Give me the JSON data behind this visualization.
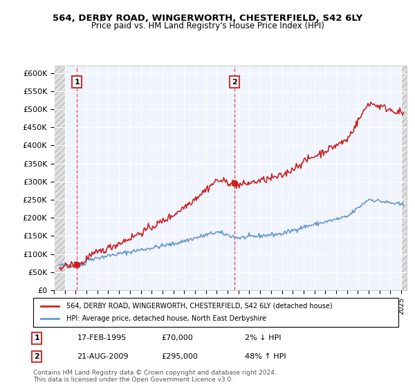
{
  "title": "564, DERBY ROAD, WINGERWORTH, CHESTERFIELD, S42 6LY",
  "subtitle": "Price paid vs. HM Land Registry's House Price Index (HPI)",
  "ytick_values": [
    0,
    50000,
    100000,
    150000,
    200000,
    250000,
    300000,
    350000,
    400000,
    450000,
    500000,
    550000,
    600000
  ],
  "ylim": [
    0,
    620000
  ],
  "xlim_start": 1993.0,
  "xlim_end": 2025.5,
  "transaction1": {
    "date": 1995.12,
    "price": 70000,
    "label": "1",
    "text": "17-FEB-1995",
    "amount": "£70,000",
    "pct": "2% ↓ HPI"
  },
  "transaction2": {
    "date": 2009.65,
    "price": 295000,
    "label": "2",
    "text": "21-AUG-2009",
    "amount": "£295,000",
    "pct": "48% ↑ HPI"
  },
  "hpi_color": "#6699cc",
  "price_color": "#cc2222",
  "dashed_color": "#cc2222",
  "background_plot": "#f0f4ff",
  "grid_color": "#ffffff",
  "legend_label1": "564, DERBY ROAD, WINGERWORTH, CHESTERFIELD, S42 6LY (detached house)",
  "legend_label2": "HPI: Average price, detached house, North East Derbyshire",
  "footer": "Contains HM Land Registry data © Crown copyright and database right 2024.\nThis data is licensed under the Open Government Licence v3.0."
}
